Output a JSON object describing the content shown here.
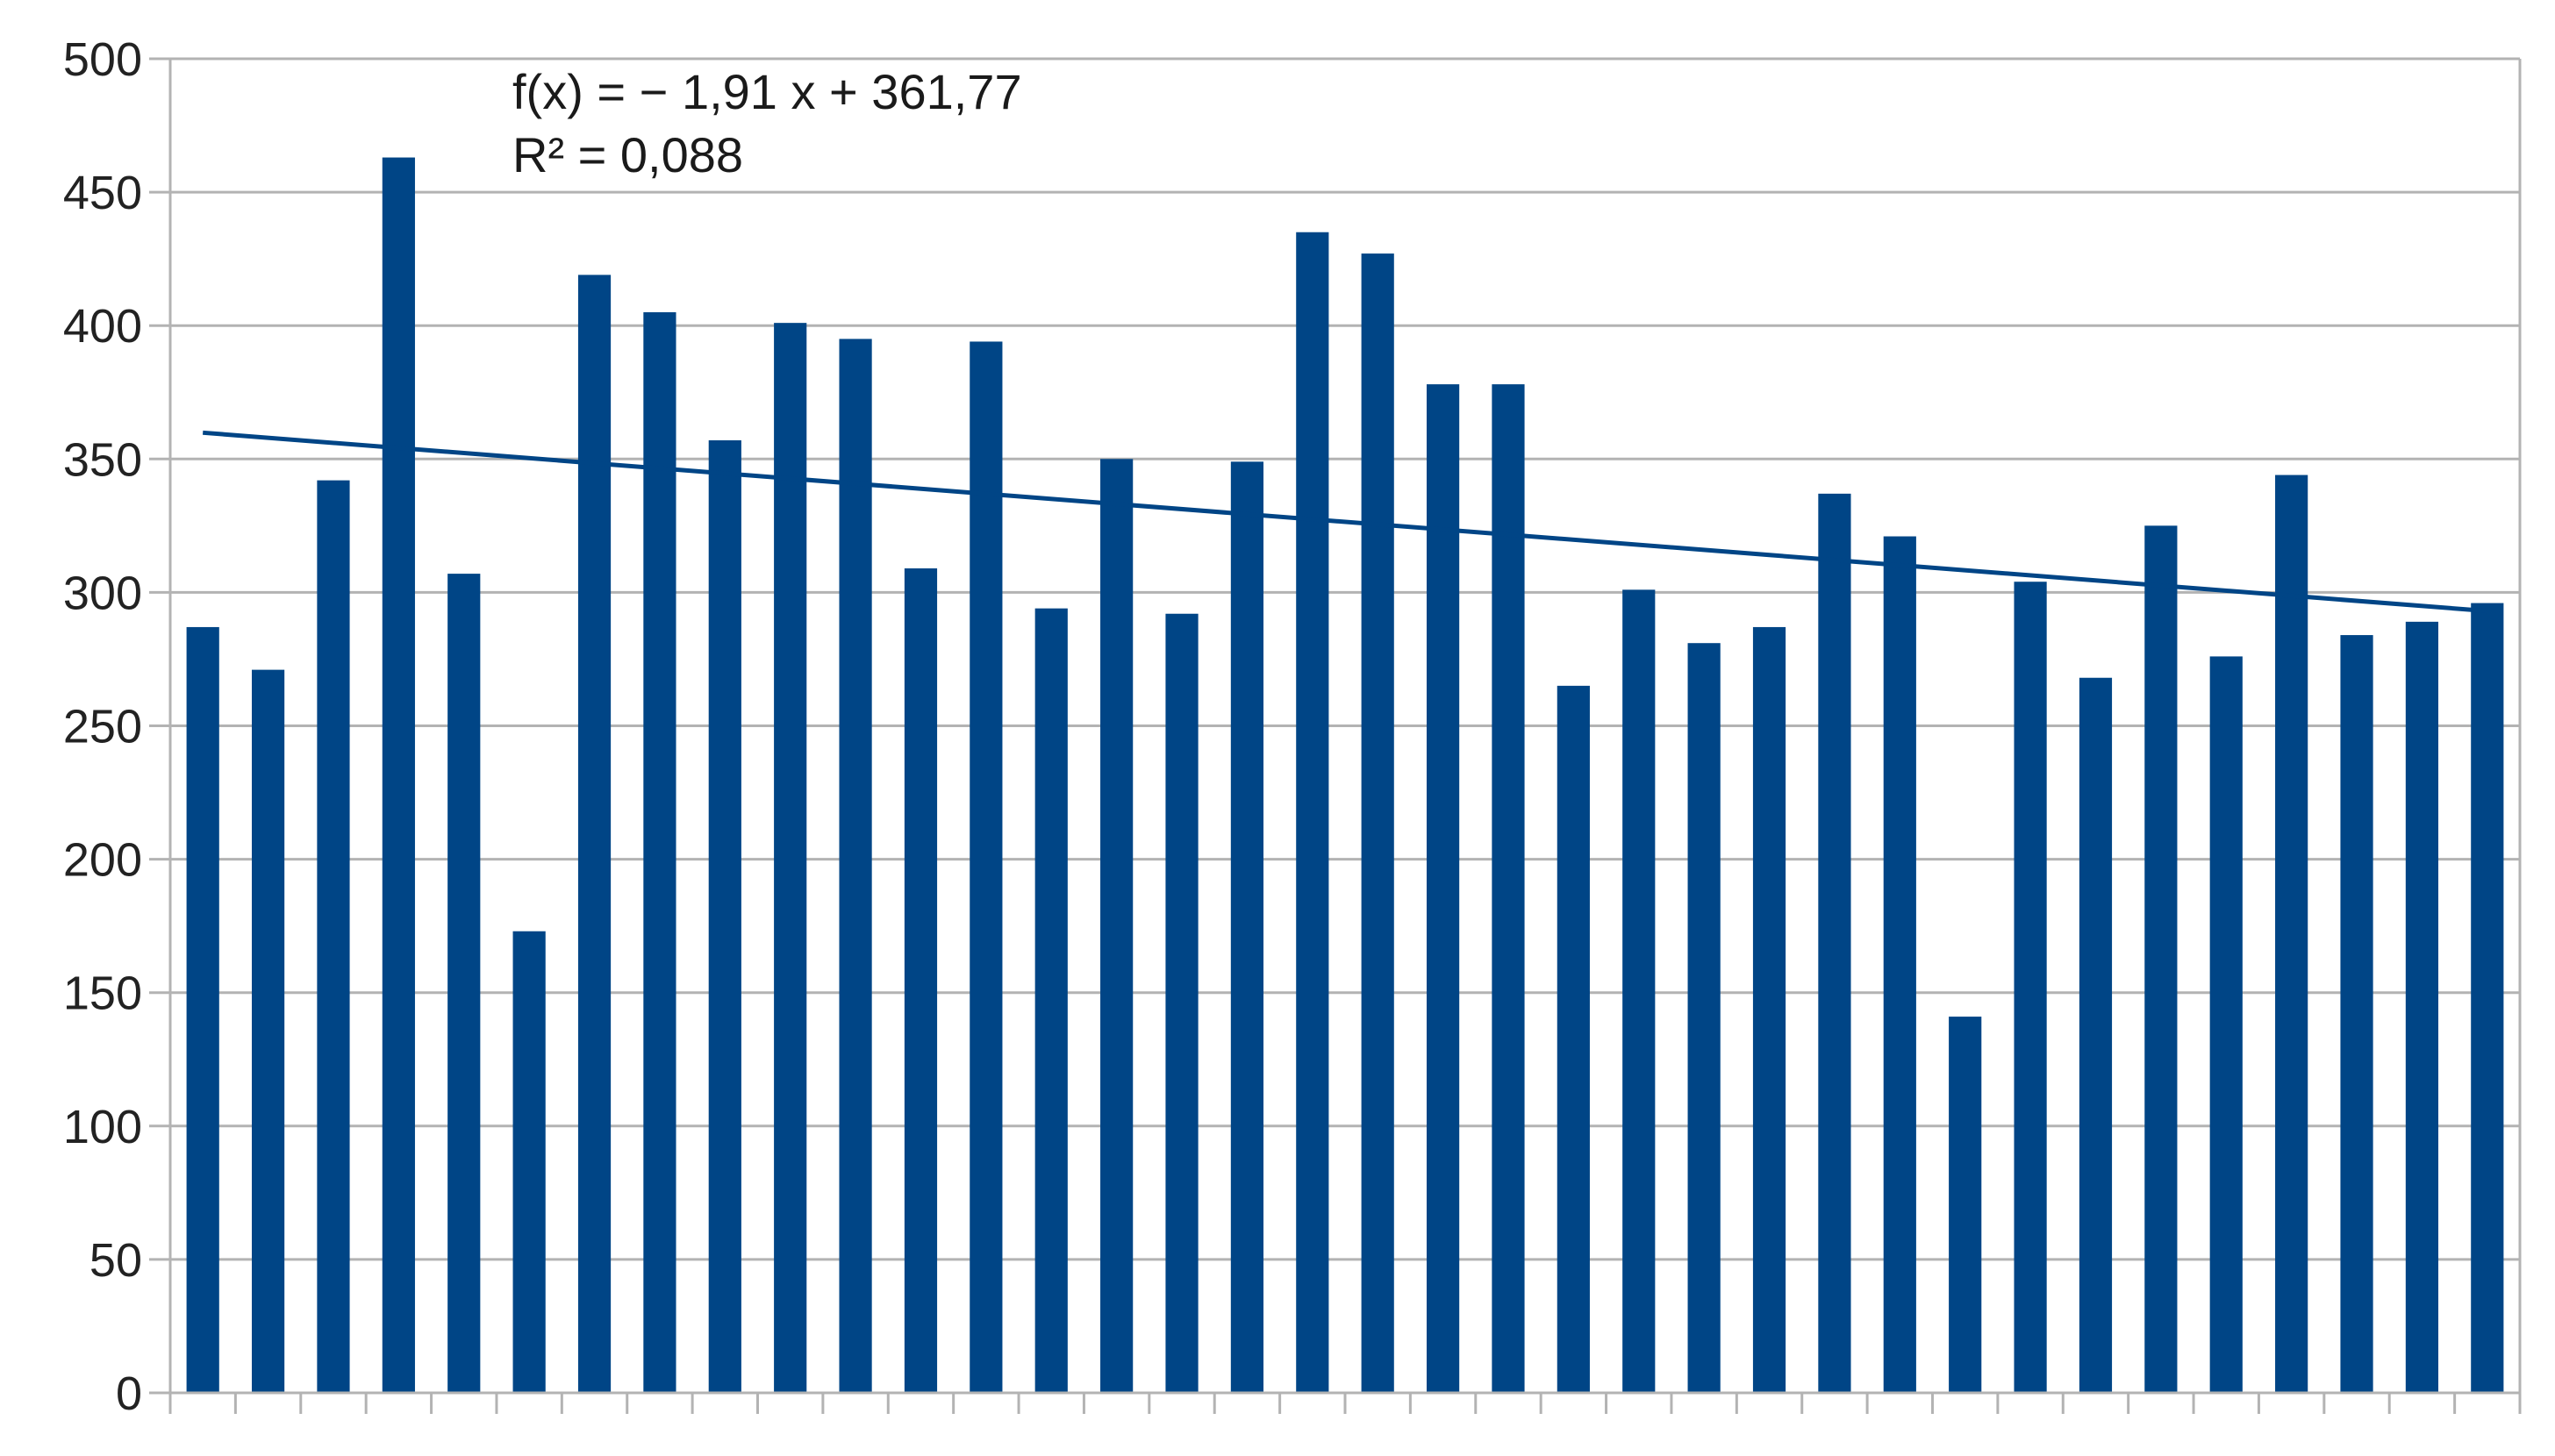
{
  "chart_data": {
    "type": "bar",
    "title": "",
    "xlabel": "",
    "ylabel": "",
    "ylim": [
      0,
      500
    ],
    "y_ticks": [
      0,
      50,
      100,
      150,
      200,
      250,
      300,
      350,
      400,
      450,
      500
    ],
    "y_tick_labels": [
      "0",
      "50",
      "100",
      "150",
      "200",
      "250",
      "300",
      "350",
      "400",
      "450",
      "500"
    ],
    "grid": true,
    "legend": "none",
    "bar_color": "#004586",
    "trendline_color": "#004586",
    "values": [
      287,
      271,
      342,
      463,
      307,
      173,
      419,
      405,
      357,
      401,
      395,
      309,
      394,
      294,
      350,
      292,
      349,
      435,
      427,
      378,
      378,
      265,
      301,
      281,
      287,
      337,
      321,
      141,
      304,
      268,
      325,
      276,
      344,
      284,
      289,
      296
    ],
    "trendline": {
      "type": "linear",
      "slope": -1.91,
      "intercept": 361.77,
      "equation_label": "f(x) = − 1,91 x + 361,77",
      "r2_label": "R² = 0,088"
    }
  }
}
